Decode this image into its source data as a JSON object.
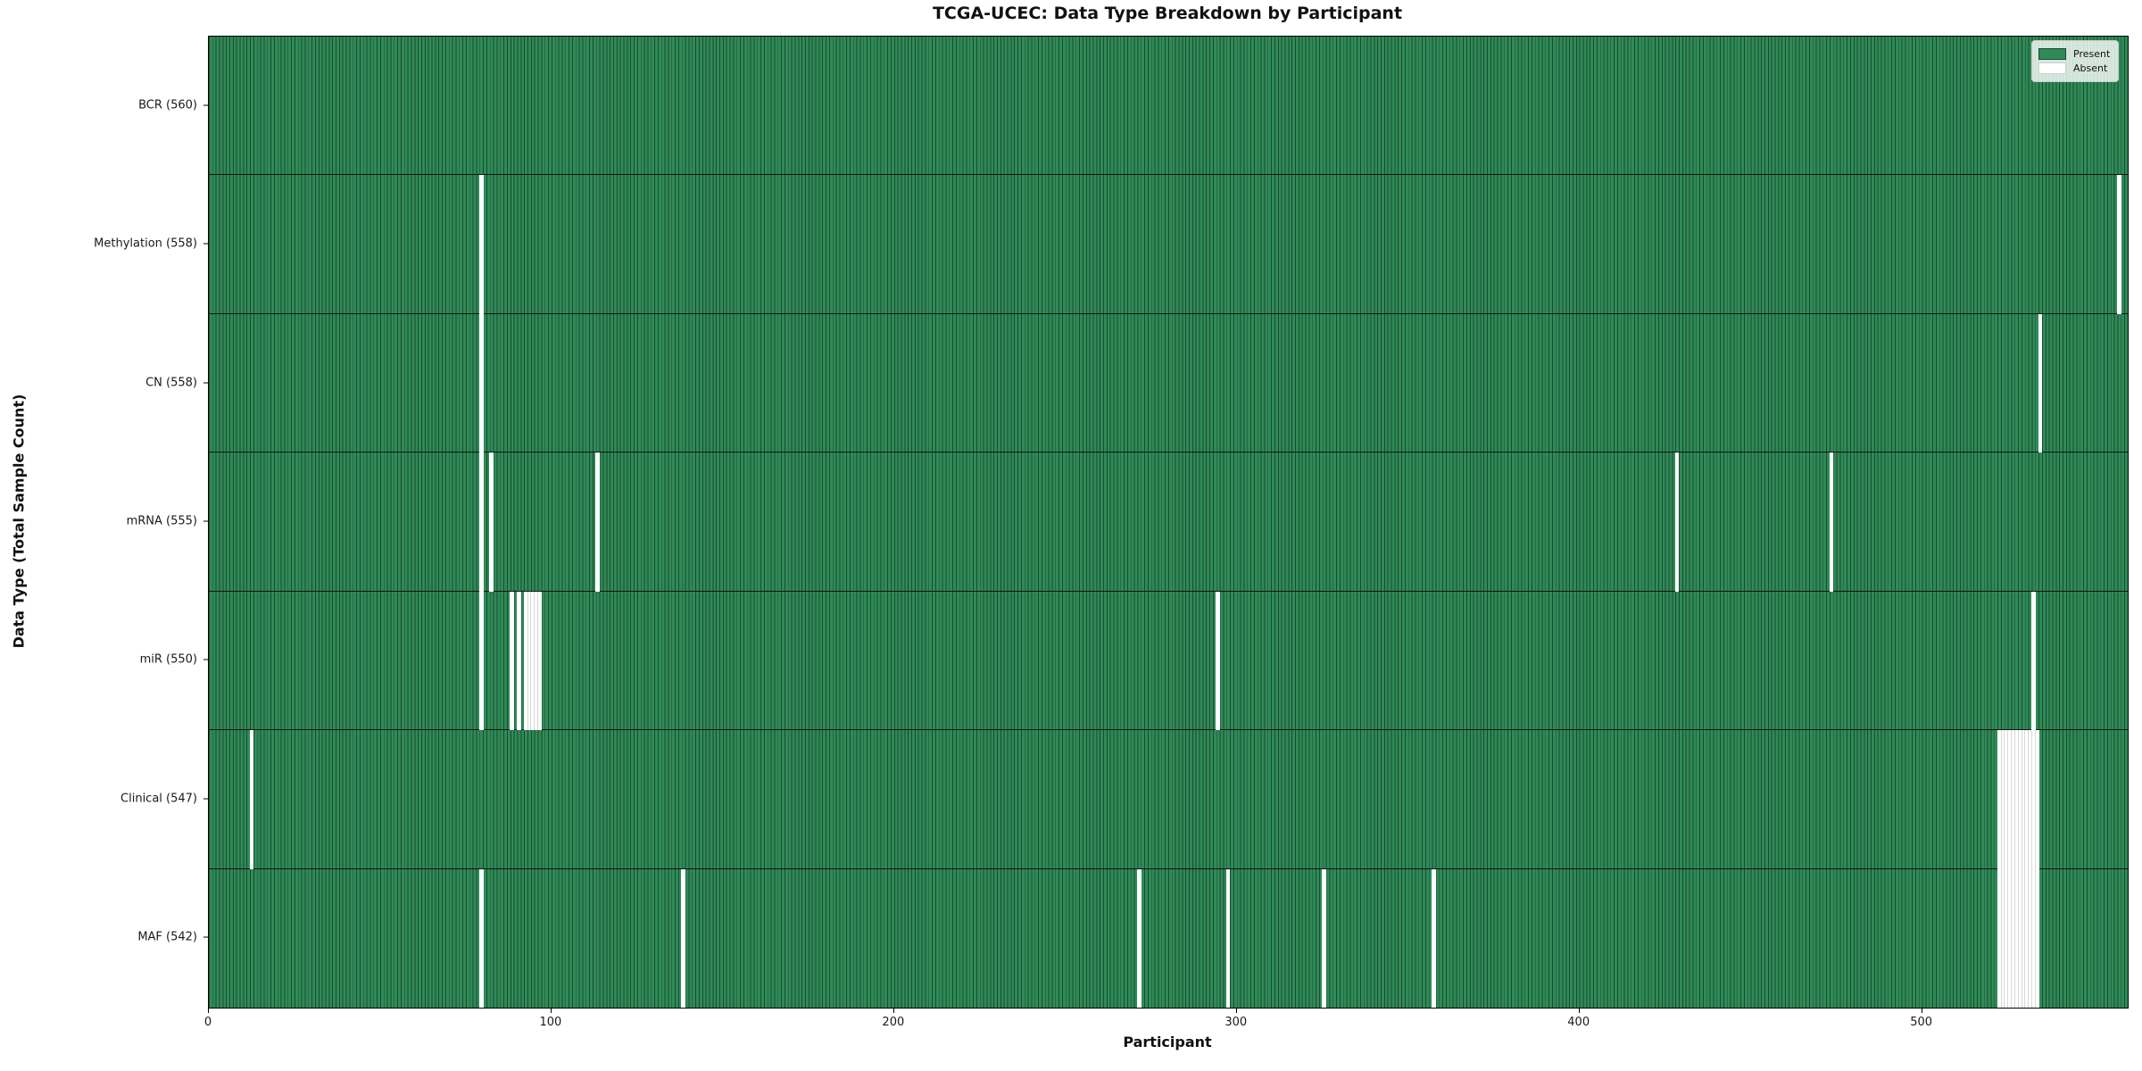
{
  "figure": {
    "title": "TCGA-UCEC: Data Type Breakdown by Participant",
    "x_axis_label": "Participant",
    "y_axis_label": "Data Type (Total Sample Count)"
  },
  "legend": {
    "items": [
      {
        "label": "Present",
        "color": "#2e8b57"
      },
      {
        "label": "Absent",
        "color": "#ffffff"
      }
    ]
  },
  "chart_data": {
    "type": "heatmap",
    "subtype": "presence-absence-matrix",
    "title": "TCGA-UCEC: Data Type Breakdown by Participant",
    "xlabel": "Participant",
    "ylabel": "Data Type (Total Sample Count)",
    "xlim": [
      0,
      560
    ],
    "x_ticks": [
      0,
      100,
      200,
      300,
      400,
      500
    ],
    "n_participants": 560,
    "present_color": "#2e8b57",
    "absent_color": "#ffffff",
    "grid": false,
    "legend_entries": [
      "Present",
      "Absent"
    ],
    "legend_position": "upper right",
    "rows": [
      {
        "data_type": "BCR",
        "label": "BCR (560)",
        "total": 560,
        "absent_participants": []
      },
      {
        "data_type": "Methylation",
        "label": "Methylation (558)",
        "total": 558,
        "absent_participants": [
          79,
          557
        ]
      },
      {
        "data_type": "CN",
        "label": "CN (558)",
        "total": 558,
        "absent_participants": [
          79,
          534
        ]
      },
      {
        "data_type": "mRNA",
        "label": "mRNA (555)",
        "total": 555,
        "absent_participants": [
          79,
          82,
          113,
          428,
          473
        ]
      },
      {
        "data_type": "miR",
        "label": "miR (550)",
        "total": 550,
        "absent_participants": [
          79,
          88,
          90,
          92,
          93,
          94,
          95,
          96,
          294,
          532
        ]
      },
      {
        "data_type": "Clinical",
        "label": "Clinical (547)",
        "total": 547,
        "absent_participants": [
          12,
          522,
          523,
          524,
          525,
          526,
          527,
          528,
          529,
          530,
          531,
          532,
          533
        ]
      },
      {
        "data_type": "MAF",
        "label": "MAF (542)",
        "total": 542,
        "absent_participants": [
          79,
          138,
          271,
          297,
          325,
          357,
          522,
          523,
          524,
          525,
          526,
          527,
          528,
          529,
          530,
          531,
          532,
          533
        ]
      }
    ]
  }
}
